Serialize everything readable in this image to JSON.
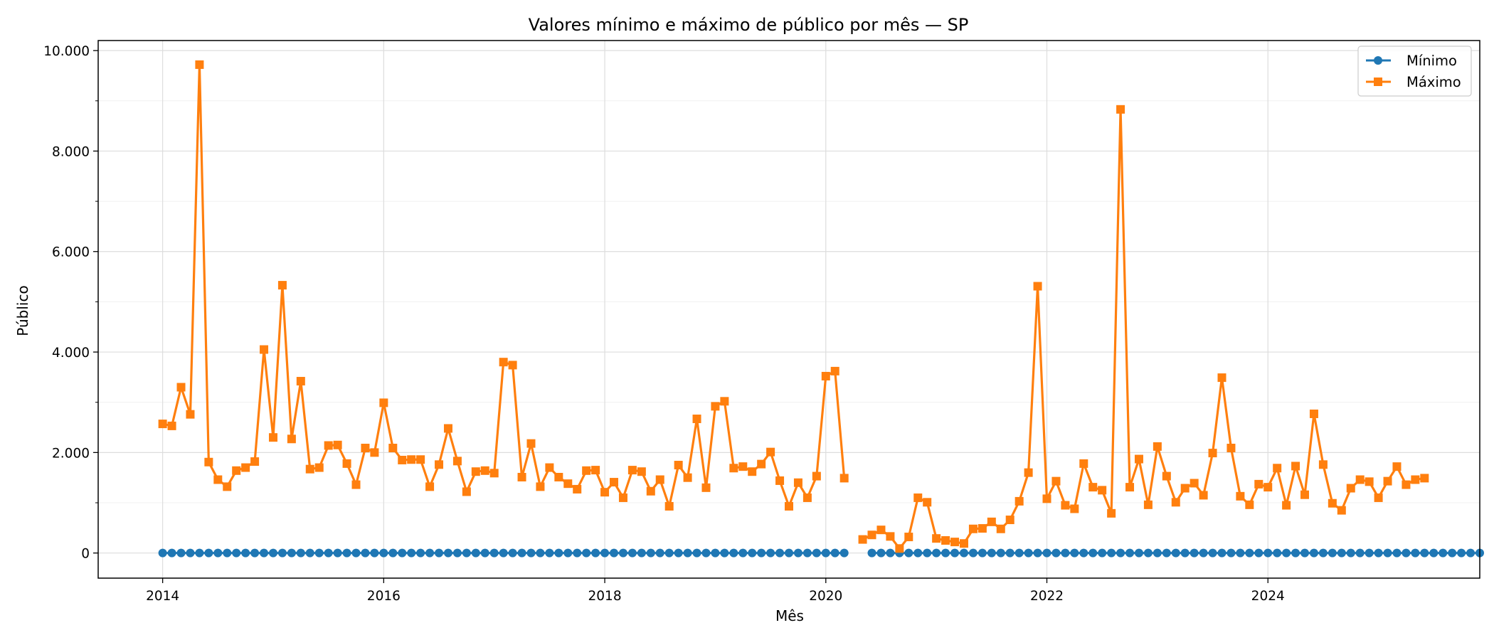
{
  "chart_data": {
    "type": "line",
    "title": "Valores mínimo e máximo de público por mês — SP",
    "xlabel": "Mês",
    "ylabel": "Público",
    "x_start": "2014-01",
    "x_tick_labels": [
      "2014",
      "2016",
      "2018",
      "2020",
      "2022",
      "2024"
    ],
    "y_tick_labels": [
      "0",
      "2.000",
      "4.000",
      "6.000",
      "8.000",
      "10.000"
    ],
    "ylim": [
      -500,
      10200
    ],
    "xlim": [
      "2013-06",
      "2025-12"
    ],
    "grid": true,
    "legend_position": "top-right",
    "series": [
      {
        "name": "Mínimo",
        "color": "#1f77b4",
        "marker": "circle",
        "values": [
          0,
          0,
          0,
          0,
          0,
          0,
          0,
          0,
          0,
          0,
          0,
          0,
          0,
          0,
          0,
          0,
          0,
          0,
          0,
          0,
          0,
          0,
          0,
          0,
          0,
          0,
          0,
          0,
          0,
          0,
          0,
          0,
          0,
          0,
          0,
          0,
          0,
          0,
          0,
          0,
          0,
          0,
          0,
          0,
          0,
          0,
          0,
          0,
          0,
          0,
          0,
          0,
          0,
          0,
          0,
          0,
          0,
          0,
          0,
          0,
          0,
          0,
          0,
          0,
          0,
          0,
          0,
          0,
          0,
          0,
          0,
          0,
          0,
          0,
          0,
          null,
          null,
          0,
          0,
          0,
          0,
          0,
          0,
          0,
          0,
          0,
          0,
          0,
          0,
          0,
          0,
          0,
          0,
          0,
          0,
          0,
          0,
          0,
          0,
          0,
          0,
          0,
          0,
          0,
          0,
          0,
          0,
          0,
          0,
          0,
          0,
          0,
          0,
          0,
          0,
          0,
          0,
          0,
          0,
          0,
          0,
          0,
          0,
          0,
          0,
          0,
          0,
          0,
          0,
          0,
          0,
          0,
          0,
          0,
          0,
          0,
          0,
          0,
          0,
          0,
          0,
          0,
          0,
          0
        ]
      },
      {
        "name": "Máximo",
        "color": "#ff7f0e",
        "marker": "square",
        "values": [
          2570,
          2530,
          3300,
          2760,
          9720,
          1810,
          1460,
          1320,
          1640,
          1700,
          1820,
          4050,
          2300,
          5330,
          2270,
          3420,
          1670,
          1700,
          2140,
          2150,
          1780,
          1360,
          2090,
          2000,
          2990,
          2090,
          1850,
          1860,
          1860,
          1320,
          1760,
          2480,
          1830,
          1220,
          1620,
          1640,
          1590,
          3800,
          3740,
          1510,
          2180,
          1320,
          1700,
          1510,
          1380,
          1270,
          1640,
          1650,
          1210,
          1410,
          1100,
          1650,
          1620,
          1230,
          1460,
          930,
          1750,
          1500,
          2670,
          1300,
          2920,
          3020,
          1690,
          1720,
          1620,
          1770,
          2010,
          1440,
          930,
          1400,
          1100,
          1530,
          3520,
          3620,
          1490,
          null,
          270,
          360,
          460,
          330,
          90,
          320,
          1100,
          1010,
          290,
          250,
          220,
          190,
          480,
          490,
          620,
          480,
          660,
          1030,
          1600,
          5310,
          1080,
          1430,
          950,
          880,
          1780,
          1310,
          1250,
          790,
          8830,
          1310,
          1870,
          960,
          2120,
          1530,
          1010,
          1290,
          1390,
          1150,
          1990,
          3490,
          2090,
          1130,
          960,
          1370,
          1310,
          1690,
          950,
          1730,
          1160,
          2770,
          1760,
          990,
          850,
          1290,
          1460,
          1420,
          1100,
          1430,
          1720,
          1360,
          1460,
          1490
        ]
      }
    ]
  }
}
